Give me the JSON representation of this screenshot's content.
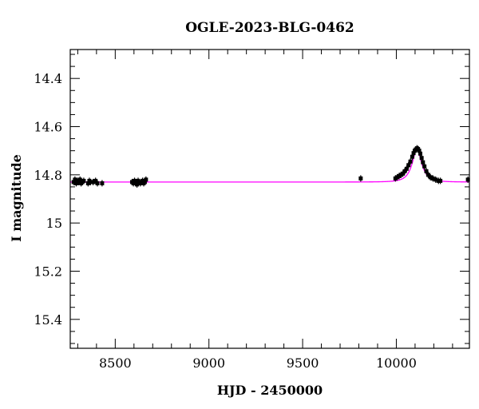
{
  "chart_data": {
    "type": "scatter",
    "title": "OGLE-2023-BLG-0462",
    "xlabel": "HJD - 2450000",
    "ylabel": "I magnitude",
    "xlim": [
      8260,
      10390
    ],
    "ylim": [
      15.52,
      14.28
    ],
    "y_inverted": true,
    "x_ticks": [
      8500,
      9000,
      9500,
      10000
    ],
    "x_tick_labels": [
      "8500",
      "9000",
      "9500",
      "10000"
    ],
    "y_ticks": [
      14.4,
      14.6,
      14.8,
      15.0,
      15.2,
      15.4
    ],
    "y_tick_labels": [
      "14.4",
      "14.6",
      "14.8",
      "15",
      "15.2",
      "15.4"
    ],
    "grid": false,
    "point_color": "#000000",
    "model_color": "#ff00ff",
    "model": {
      "name": "",
      "baseline": 14.83,
      "peak_x": 10110,
      "peak_mag": 14.695,
      "width_days": 32
    },
    "points": [
      {
        "x": 8278,
        "y": 14.83
      },
      {
        "x": 8285,
        "y": 14.82
      },
      {
        "x": 8292,
        "y": 14.835
      },
      {
        "x": 8298,
        "y": 14.825
      },
      {
        "x": 8305,
        "y": 14.83
      },
      {
        "x": 8312,
        "y": 14.82
      },
      {
        "x": 8318,
        "y": 14.835
      },
      {
        "x": 8325,
        "y": 14.83
      },
      {
        "x": 8332,
        "y": 14.825
      },
      {
        "x": 8355,
        "y": 14.835
      },
      {
        "x": 8362,
        "y": 14.825
      },
      {
        "x": 8368,
        "y": 14.83
      },
      {
        "x": 8382,
        "y": 14.83
      },
      {
        "x": 8395,
        "y": 14.825
      },
      {
        "x": 8405,
        "y": 14.835
      },
      {
        "x": 8430,
        "y": 14.835
      },
      {
        "x": 8590,
        "y": 14.83
      },
      {
        "x": 8597,
        "y": 14.835
      },
      {
        "x": 8603,
        "y": 14.825
      },
      {
        "x": 8610,
        "y": 14.83
      },
      {
        "x": 8616,
        "y": 14.84
      },
      {
        "x": 8622,
        "y": 14.825
      },
      {
        "x": 8628,
        "y": 14.83
      },
      {
        "x": 8634,
        "y": 14.835
      },
      {
        "x": 8640,
        "y": 14.83
      },
      {
        "x": 8646,
        "y": 14.825
      },
      {
        "x": 8652,
        "y": 14.835
      },
      {
        "x": 8658,
        "y": 14.83
      },
      {
        "x": 8664,
        "y": 14.82
      },
      {
        "x": 9810,
        "y": 14.815
      },
      {
        "x": 9995,
        "y": 14.815
      },
      {
        "x": 10005,
        "y": 14.81
      },
      {
        "x": 10015,
        "y": 14.805
      },
      {
        "x": 10025,
        "y": 14.8
      },
      {
        "x": 10035,
        "y": 14.795
      },
      {
        "x": 10045,
        "y": 14.785
      },
      {
        "x": 10055,
        "y": 14.775
      },
      {
        "x": 10065,
        "y": 14.76
      },
      {
        "x": 10075,
        "y": 14.745
      },
      {
        "x": 10085,
        "y": 14.725
      },
      {
        "x": 10092,
        "y": 14.71
      },
      {
        "x": 10098,
        "y": 14.7
      },
      {
        "x": 10104,
        "y": 14.695
      },
      {
        "x": 10110,
        "y": 14.69
      },
      {
        "x": 10116,
        "y": 14.693
      },
      {
        "x": 10122,
        "y": 14.7
      },
      {
        "x": 10128,
        "y": 14.712
      },
      {
        "x": 10135,
        "y": 14.73
      },
      {
        "x": 10142,
        "y": 14.748
      },
      {
        "x": 10150,
        "y": 14.765
      },
      {
        "x": 10160,
        "y": 14.785
      },
      {
        "x": 10170,
        "y": 14.8
      },
      {
        "x": 10182,
        "y": 14.81
      },
      {
        "x": 10195,
        "y": 14.815
      },
      {
        "x": 10210,
        "y": 14.82
      },
      {
        "x": 10225,
        "y": 14.825
      },
      {
        "x": 10235,
        "y": 14.825
      },
      {
        "x": 10382,
        "y": 14.82
      }
    ]
  }
}
